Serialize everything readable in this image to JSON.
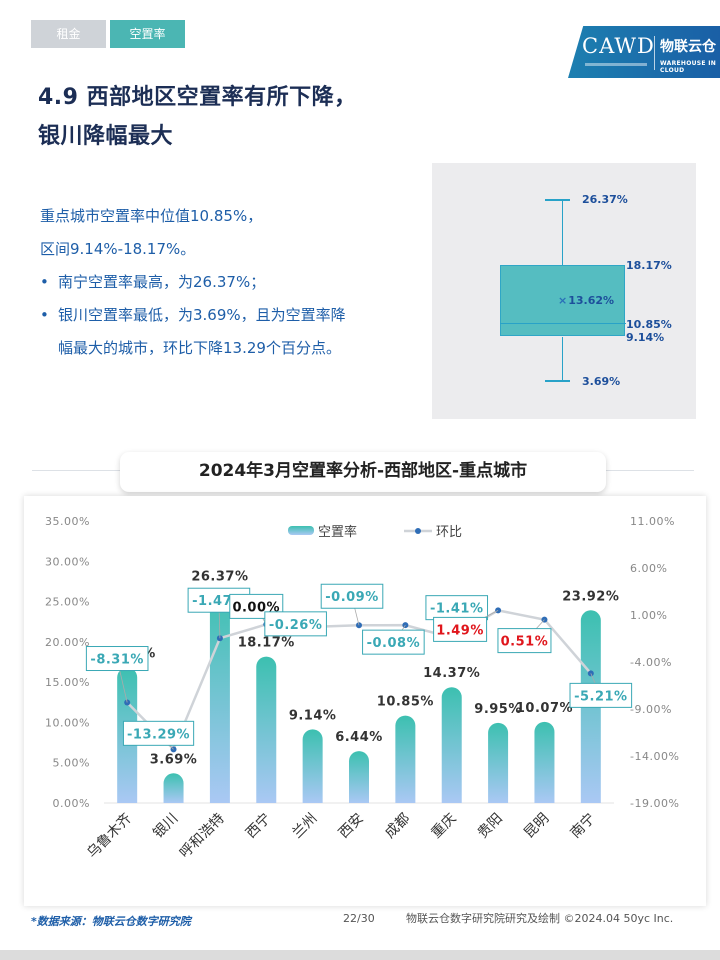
{
  "tabs": [
    {
      "label": "租金",
      "active": false
    },
    {
      "label": "空置率",
      "active": true
    }
  ],
  "logo": {
    "text": "CAWD",
    "mark": "物联云仓",
    "brand_en": "WAREHOUSE IN CLOUD"
  },
  "headline": {
    "line1": "4.9 西部地区空置率有所下降，",
    "line2": "银川降幅最大"
  },
  "summary": {
    "line1": "重点城市空置率中位值10.85%，",
    "line2": "区间9.14%-18.17%。",
    "bullet1": "南宁空置率最高，为26.37%；",
    "bullet2_line1": "银川空置率最低，为3.69%，且为空置率降",
    "bullet2_line2": "幅最大的城市，环比下降13.29个百分点。"
  },
  "boxplot": {
    "max": "26.37%",
    "q3": "18.17%",
    "mean": "13.62%",
    "median": "10.85%",
    "q1": "9.14%",
    "min": "3.69%"
  },
  "chart_title": "2024年3月空置率分析-西部地区-重点城市",
  "chart_data": {
    "type": "bar",
    "categories": [
      "乌鲁木齐",
      "银川",
      "呼和浩特",
      "西宁",
      "兰州",
      "西安",
      "成都",
      "重庆",
      "贵阳",
      "昆明",
      "南宁"
    ],
    "series": [
      {
        "name": "空置率",
        "type": "bar",
        "axis": "left",
        "values": [
          16.83,
          3.69,
          26.37,
          18.17,
          9.14,
          6.44,
          10.85,
          14.37,
          9.95,
          10.07,
          23.92
        ],
        "labels": [
          "16.83%",
          "3.69%",
          "26.37%",
          "18.17%",
          "9.14%",
          "6.44%",
          "10.85%",
          "14.37%",
          "9.95%",
          "10.07%",
          "23.92%"
        ]
      },
      {
        "name": "环比",
        "type": "line",
        "axis": "right",
        "values": [
          -8.31,
          -13.29,
          -1.47,
          0.0,
          -0.26,
          -0.09,
          -0.08,
          -1.41,
          1.49,
          0.51,
          -5.21
        ],
        "labels": [
          "-8.31%",
          "-13.29%",
          "-1.47%",
          "0.00%",
          "-0.26%",
          "-0.09%",
          "-0.08%",
          "-1.41%",
          "1.49%",
          "0.51%",
          "-5.21%"
        ]
      }
    ],
    "y_left": {
      "range": [
        0,
        35
      ],
      "ticks": [
        "0.00%",
        "5.00%",
        "10.00%",
        "15.00%",
        "20.00%",
        "25.00%",
        "30.00%",
        "35.00%"
      ]
    },
    "y_right": {
      "range": [
        -19,
        11
      ],
      "ticks": [
        "-19.00%",
        "-14.00%",
        "-9.00%",
        "-4.00%",
        "1.00%",
        "6.00%",
        "11.00%"
      ]
    },
    "legend_placement": "top-center",
    "colors": {
      "bar_top": "#3cc0b0",
      "bar_bottom": "#aac8f4",
      "line": "#cfd3d8",
      "marker": "#2f6db6",
      "label_teal": "#3aa8b5",
      "label_red": "#e0161c",
      "label_black": "#111111"
    },
    "label_colors": [
      "teal",
      "teal",
      "teal",
      "black",
      "teal",
      "teal",
      "teal",
      "teal",
      "red",
      "red",
      "teal"
    ]
  },
  "footer": {
    "source": "*数据来源：物联云仓数字研究院",
    "page": "22/30",
    "credit": "物联云仓数字研究院研究及绘制   ©2024.04 50yc Inc."
  }
}
